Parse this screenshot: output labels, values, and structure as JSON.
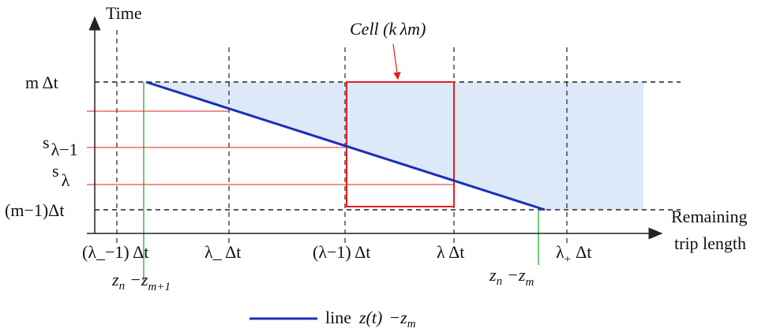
{
  "labels": {
    "y_axis": "Time",
    "x_axis_line1": "Remaining",
    "x_axis_line2": "trip length",
    "cell": "Cell (k λm)"
  },
  "y_labels": {
    "m_dt": "m Δt",
    "s_lm1_main": "s",
    "s_lm1_sub": "λ−1",
    "s_l_main": "s",
    "s_l_sub": "λ",
    "m1_dt": "(m−1)Δt"
  },
  "x_labels": {
    "lm_minus1_dt": "(λ_−1) Δt",
    "lm_dt": "λ_ Δt",
    "l_minus1_dt": "(λ−1) Δt",
    "l_dt": "λ Δt",
    "lp_main": "λ",
    "lp_sub": "+",
    "lp_rest": "Δt"
  },
  "z_labels": {
    "left_zn": "z",
    "left_n": "n",
    "left_minus": "−z",
    "left_sub": "m+1",
    "right_zn": "z",
    "right_n": "n",
    "right_minus": "−z",
    "right_sub": "m"
  },
  "legend": {
    "line_word": "line",
    "expr": "z(t)",
    "minus_z": "−z",
    "sub": "m"
  },
  "colors": {
    "blue_line": "#1a2fb8",
    "shade": "#dde9f8",
    "red": "#e02020",
    "green": "#1aa01a",
    "axis": "#222222"
  }
}
